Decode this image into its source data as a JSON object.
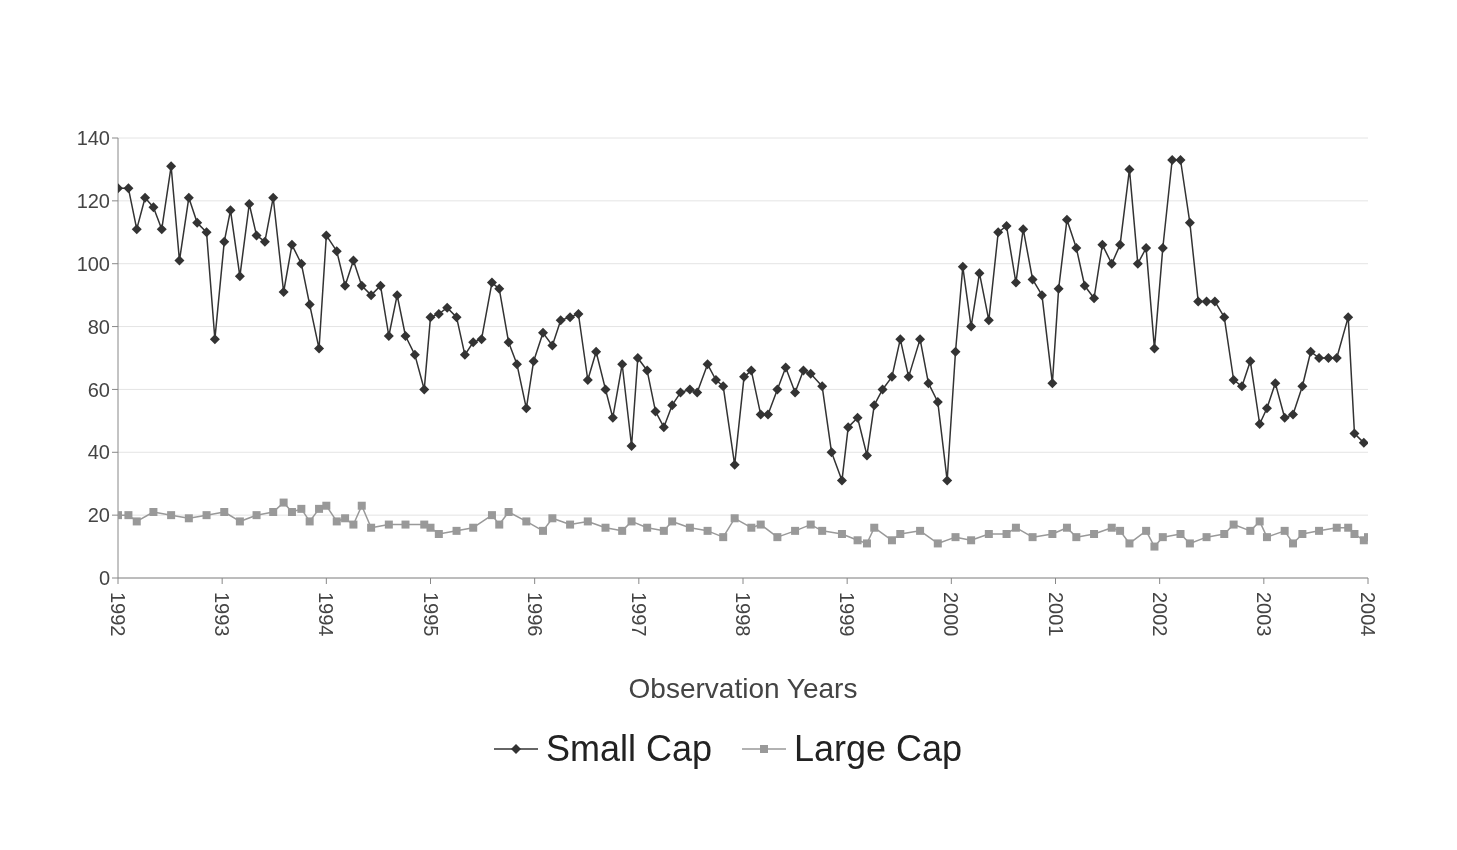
{
  "chart_data": {
    "type": "line",
    "xlabel": "Observation Years",
    "xlim": [
      1992,
      2004
    ],
    "xticks": [
      1992,
      1993,
      1994,
      1995,
      1996,
      1997,
      1998,
      1999,
      2000,
      2001,
      2002,
      2003,
      2004
    ],
    "ylim": [
      0,
      140
    ],
    "yticks": [
      0,
      20,
      40,
      60,
      80,
      100,
      120,
      140
    ],
    "grid": "y",
    "legend": "bottom",
    "line_style": "solid",
    "series": [
      {
        "name": "Small Cap",
        "color": "#333333",
        "marker": "diamond",
        "x": [
          1992.0,
          1992.1,
          1992.18,
          1992.26,
          1992.34,
          1992.42,
          1992.51,
          1992.59,
          1992.68,
          1992.76,
          1992.85,
          1992.93,
          1993.02,
          1993.08,
          1993.17,
          1993.26,
          1993.33,
          1993.41,
          1993.49,
          1993.59,
          1993.67,
          1993.76,
          1993.84,
          1993.93,
          1994.0,
          1994.1,
          1994.18,
          1994.26,
          1994.34,
          1994.43,
          1994.52,
          1994.6,
          1994.68,
          1994.76,
          1994.85,
          1994.94,
          1995.0,
          1995.08,
          1995.16,
          1995.25,
          1995.33,
          1995.41,
          1995.49,
          1995.59,
          1995.66,
          1995.75,
          1995.83,
          1995.92,
          1995.99,
          1996.08,
          1996.17,
          1996.25,
          1996.34,
          1996.42,
          1996.51,
          1996.59,
          1996.68,
          1996.75,
          1996.84,
          1996.93,
          1996.99,
          1997.08,
          1997.16,
          1997.24,
          1997.32,
          1997.4,
          1997.49,
          1997.56,
          1997.66,
          1997.74,
          1997.81,
          1997.92,
          1998.01,
          1998.08,
          1998.17,
          1998.24,
          1998.33,
          1998.41,
          1998.5,
          1998.58,
          1998.65,
          1998.76,
          1998.85,
          1998.95,
          1999.01,
          1999.1,
          1999.19,
          1999.26,
          1999.34,
          1999.43,
          1999.51,
          1999.59,
          1999.7,
          1999.78,
          1999.87,
          1999.96,
          2000.04,
          2000.11,
          2000.19,
          2000.27,
          2000.36,
          2000.45,
          2000.53,
          2000.62,
          2000.69,
          2000.78,
          2000.87,
          2000.97,
          2001.03,
          2001.11,
          2001.2,
          2001.28,
          2001.37,
          2001.45,
          2001.54,
          2001.62,
          2001.71,
          2001.79,
          2001.87,
          2001.95,
          2002.03,
          2002.12,
          2002.2,
          2002.29,
          2002.37,
          2002.45,
          2002.53,
          2002.62,
          2002.71,
          2002.79,
          2002.87,
          2002.96,
          2003.03,
          2003.11,
          2003.2,
          2003.28,
          2003.37,
          2003.45,
          2003.53,
          2003.62,
          2003.7,
          2003.81,
          2003.87,
          2003.96
        ],
        "values": [
          124,
          124,
          111,
          121,
          118,
          111,
          131,
          101,
          121,
          113,
          110,
          76,
          107,
          117,
          96,
          119,
          109,
          107,
          121,
          91,
          106,
          100,
          87,
          73,
          109,
          104,
          93,
          101,
          93,
          90,
          93,
          77,
          90,
          77,
          71,
          60,
          83,
          84,
          86,
          83,
          71,
          75,
          76,
          94,
          92,
          75,
          68,
          54,
          69,
          78,
          74,
          82,
          83,
          84,
          63,
          72,
          60,
          51,
          68,
          42,
          70,
          66,
          53,
          48,
          55,
          59,
          60,
          59,
          68,
          63,
          61,
          36,
          64,
          66,
          52,
          52,
          60,
          67,
          59,
          66,
          65,
          61,
          40,
          31,
          48,
          51,
          39,
          55,
          60,
          64,
          76,
          64,
          76,
          62,
          56,
          31,
          72,
          99,
          80,
          97,
          82,
          110,
          112,
          94,
          111,
          95,
          90,
          62,
          92,
          114,
          105,
          93,
          89,
          106,
          100,
          106,
          130,
          100,
          105,
          73,
          105,
          133,
          133,
          113,
          88,
          88,
          88,
          83,
          63,
          61,
          69,
          49,
          54,
          62,
          51,
          52,
          61,
          72,
          70,
          70,
          70,
          83,
          46,
          43
        ]
      },
      {
        "name": "Large Cap",
        "color": "#999999",
        "marker": "square",
        "x": [
          1992.0,
          1992.1,
          1992.18,
          1992.34,
          1992.51,
          1992.68,
          1992.85,
          1993.02,
          1993.17,
          1993.33,
          1993.49,
          1993.59,
          1993.67,
          1993.76,
          1993.84,
          1993.93,
          1994.0,
          1994.1,
          1994.18,
          1994.26,
          1994.34,
          1994.43,
          1994.6,
          1994.76,
          1994.94,
          1995.0,
          1995.08,
          1995.25,
          1995.41,
          1995.59,
          1995.66,
          1995.75,
          1995.92,
          1996.08,
          1996.17,
          1996.34,
          1996.51,
          1996.68,
          1996.84,
          1996.93,
          1997.08,
          1997.24,
          1997.32,
          1997.49,
          1997.66,
          1997.81,
          1997.92,
          1998.08,
          1998.17,
          1998.33,
          1998.5,
          1998.65,
          1998.76,
          1998.95,
          1999.1,
          1999.19,
          1999.26,
          1999.43,
          1999.51,
          1999.7,
          1999.87,
          2000.04,
          2000.19,
          2000.36,
          2000.53,
          2000.62,
          2000.78,
          2000.97,
          2001.11,
          2001.2,
          2001.37,
          2001.54,
          2001.62,
          2001.71,
          2001.87,
          2001.95,
          2002.03,
          2002.2,
          2002.29,
          2002.45,
          2002.62,
          2002.71,
          2002.87,
          2002.96,
          2003.03,
          2003.2,
          2003.28,
          2003.37,
          2003.53,
          2003.7,
          2003.81,
          2003.87,
          2003.96,
          2004.0
        ],
        "values": [
          20,
          20,
          18,
          21,
          20,
          19,
          20,
          21,
          18,
          20,
          21,
          24,
          21,
          22,
          18,
          22,
          23,
          18,
          19,
          17,
          23,
          16,
          17,
          17,
          17,
          16,
          14,
          15,
          16,
          20,
          17,
          21,
          18,
          15,
          19,
          17,
          18,
          16,
          15,
          18,
          16,
          15,
          18,
          16,
          15,
          13,
          19,
          16,
          17,
          13,
          15,
          17,
          15,
          14,
          12,
          11,
          16,
          12,
          14,
          15,
          11,
          13,
          12,
          14,
          14,
          16,
          13,
          14,
          16,
          13,
          14,
          16,
          15,
          11,
          15,
          10,
          13,
          14,
          11,
          13,
          14,
          17,
          15,
          18,
          13,
          15,
          11,
          14,
          15,
          16,
          16,
          14,
          12,
          13
        ]
      }
    ]
  }
}
